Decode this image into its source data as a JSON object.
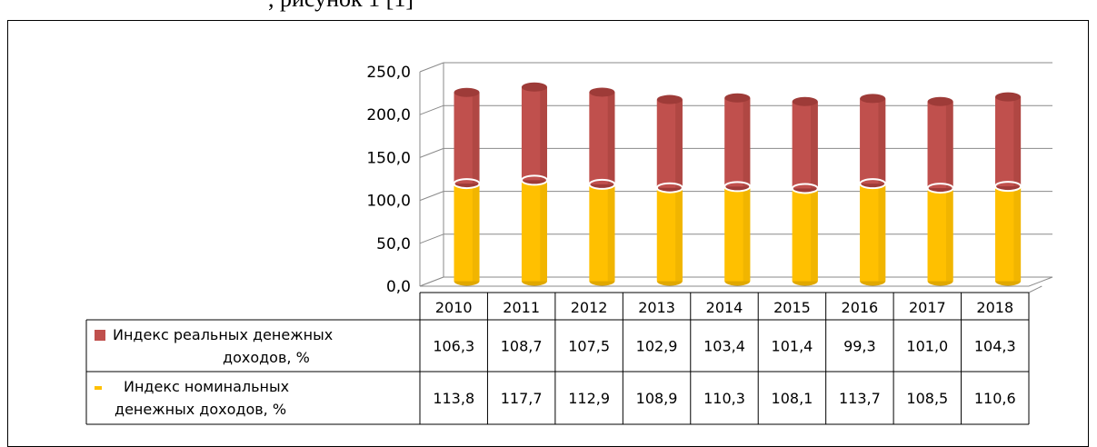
{
  "page_fragment": ", рисунок 1 [1]",
  "chart_data": {
    "type": "bar",
    "stacked": true,
    "categories": [
      "2010",
      "2011",
      "2012",
      "2013",
      "2014",
      "2015",
      "2016",
      "2017",
      "2018"
    ],
    "series": [
      {
        "name": "Индекс реальных денежных доходов, %",
        "name_lines": [
          "Индекс реальных денежных",
          "доходов, %"
        ],
        "color": "#c0504d",
        "values": [
          106.3,
          108.7,
          107.5,
          102.9,
          103.4,
          101.4,
          99.3,
          101.0,
          104.3
        ],
        "labels": [
          "106,3",
          "108,7",
          "107,5",
          "102,9",
          "103,4",
          "101,4",
          "99,3",
          "101,0",
          "104,3"
        ]
      },
      {
        "name": "Индекс номинальных денежных доходов, %",
        "name_lines": [
          "Индекс номинальных",
          "денежных доходов, %"
        ],
        "color": "#ffc000",
        "values": [
          113.8,
          117.7,
          112.9,
          108.9,
          110.3,
          108.1,
          113.7,
          108.5,
          110.6
        ],
        "labels": [
          "113,8",
          "117,7",
          "112,9",
          "108,9",
          "110,3",
          "108,1",
          "113,7",
          "108,5",
          "110,6"
        ]
      }
    ],
    "ylim": [
      0,
      250
    ],
    "yticks": [
      "0,0",
      "50,0",
      "100,0",
      "150,0",
      "200,0",
      "250,0"
    ],
    "grid": true,
    "legend": "data-table"
  }
}
